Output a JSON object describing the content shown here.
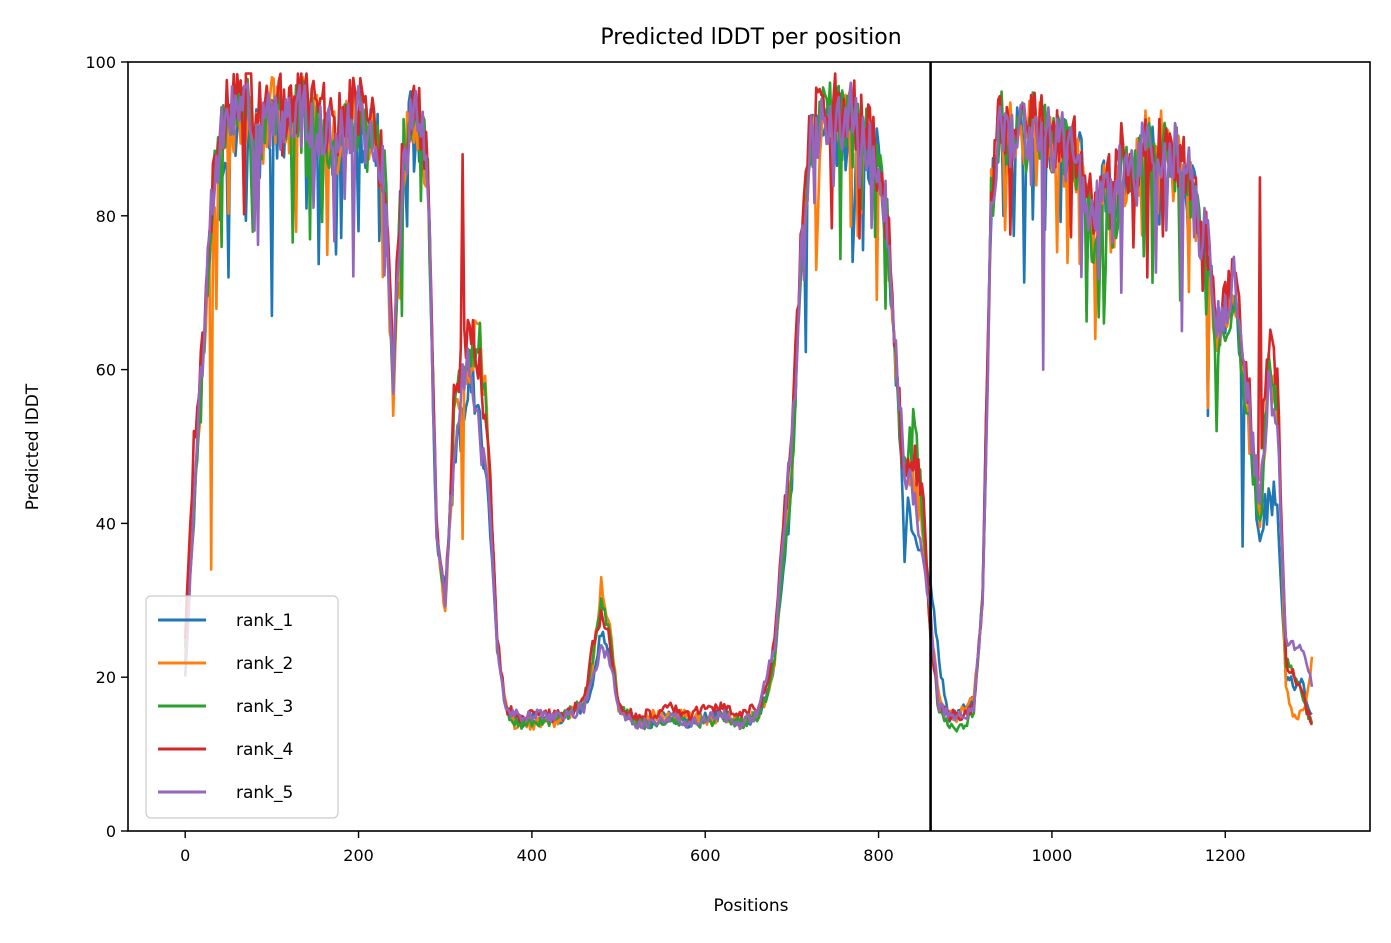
{
  "figure": {
    "title": "Predicted lDDT per position"
  },
  "chart_data": {
    "type": "line",
    "title": "Predicted lDDT per position",
    "xlabel": "Positions",
    "ylabel": "Predicted lDDT",
    "xlim": [
      -66,
      1367
    ],
    "ylim": [
      0,
      100
    ],
    "xticks": [
      0,
      200,
      400,
      600,
      800,
      1000,
      1200
    ],
    "yticks": [
      0,
      20,
      40,
      60,
      80,
      100
    ],
    "grid": false,
    "legend_position": "lower-left",
    "vertical_line": {
      "x": 860,
      "color": "#000000"
    },
    "x": [
      0,
      10,
      20,
      30,
      40,
      50,
      60,
      70,
      80,
      90,
      100,
      110,
      120,
      130,
      140,
      150,
      160,
      170,
      180,
      190,
      200,
      210,
      220,
      230,
      240,
      250,
      260,
      270,
      280,
      290,
      300,
      310,
      320,
      330,
      340,
      350,
      360,
      370,
      380,
      390,
      400,
      420,
      440,
      460,
      470,
      480,
      490,
      500,
      520,
      540,
      560,
      580,
      600,
      620,
      640,
      660,
      670,
      680,
      690,
      700,
      710,
      720,
      730,
      740,
      750,
      760,
      770,
      780,
      790,
      800,
      810,
      820,
      830,
      840,
      850,
      860,
      870,
      880,
      890,
      900,
      910,
      920,
      930,
      940,
      950,
      960,
      970,
      980,
      990,
      1000,
      1010,
      1020,
      1030,
      1040,
      1050,
      1060,
      1070,
      1080,
      1090,
      1100,
      1110,
      1120,
      1130,
      1140,
      1150,
      1160,
      1170,
      1180,
      1190,
      1200,
      1210,
      1220,
      1230,
      1240,
      1250,
      1260,
      1270,
      1280,
      1290,
      1300
    ],
    "series": [
      {
        "name": "rank_1",
        "color": "#1f77b4",
        "values": [
          22,
          44,
          62,
          80,
          89,
          90,
          92,
          93,
          91,
          90,
          92,
          91,
          90,
          92,
          93,
          91,
          90,
          88,
          89,
          91,
          92,
          89,
          90,
          84,
          60,
          85,
          92,
          91,
          85,
          38,
          31,
          48,
          52,
          60,
          52,
          42,
          24,
          16,
          15,
          14,
          15,
          14,
          15,
          16,
          19,
          26,
          23,
          16,
          14,
          14,
          15,
          14,
          15,
          15,
          14,
          15,
          17,
          22,
          34,
          45,
          72,
          88,
          90,
          92,
          93,
          91,
          92,
          90,
          88,
          87,
          78,
          60,
          42,
          39,
          36,
          32,
          22,
          15,
          15,
          16,
          17,
          30,
          82,
          92,
          89,
          91,
          89,
          92,
          90,
          88,
          90,
          88,
          88,
          82,
          79,
          84,
          80,
          86,
          84,
          86,
          90,
          87,
          89,
          88,
          86,
          84,
          78,
          76,
          64,
          66,
          69,
          60,
          50,
          37,
          44,
          42,
          20,
          19,
          19,
          15
        ],
        "dips": [
          [
            50,
            72
          ],
          [
            100,
            67
          ],
          [
            145,
            67
          ],
          [
            200,
            78
          ],
          [
            770,
            74
          ],
          [
            830,
            35
          ],
          [
            1180,
            54
          ],
          [
            1220,
            37
          ]
        ]
      },
      {
        "name": "rank_2",
        "color": "#ff7f0e",
        "values": [
          23,
          42,
          60,
          80,
          90,
          92,
          93,
          94,
          92,
          91,
          94,
          93,
          91,
          93,
          94,
          92,
          91,
          89,
          90,
          92,
          93,
          90,
          91,
          84,
          56,
          86,
          92,
          92,
          86,
          39,
          28,
          52,
          58,
          62,
          66,
          50,
          24,
          16,
          14,
          14,
          14,
          14,
          15,
          17,
          22,
          31,
          27,
          16,
          14,
          15,
          15,
          15,
          14,
          15,
          14,
          15,
          17,
          22,
          36,
          48,
          73,
          88,
          91,
          93,
          94,
          92,
          93,
          91,
          89,
          87,
          79,
          60,
          44,
          48,
          40,
          27,
          17,
          15,
          15,
          16,
          17,
          30,
          82,
          93,
          90,
          92,
          90,
          93,
          91,
          88,
          90,
          87,
          86,
          82,
          76,
          84,
          78,
          86,
          84,
          86,
          90,
          88,
          90,
          88,
          86,
          84,
          76,
          75,
          62,
          66,
          70,
          60,
          50,
          40,
          60,
          56,
          18,
          15,
          15,
          22
        ],
        "dips": [
          [
            30,
            34
          ],
          [
            240,
            54
          ],
          [
            320,
            38
          ],
          [
            345,
            37
          ],
          [
            480,
            33
          ],
          [
            1050,
            64
          ],
          [
            1180,
            55
          ]
        ]
      },
      {
        "name": "rank_3",
        "color": "#2ca02c",
        "values": [
          24,
          40,
          60,
          80,
          90,
          92,
          93,
          94,
          92,
          91,
          93,
          92,
          91,
          93,
          94,
          92,
          91,
          89,
          90,
          92,
          93,
          90,
          91,
          85,
          58,
          87,
          93,
          92,
          86,
          40,
          29,
          54,
          62,
          63,
          64,
          50,
          24,
          16,
          14,
          14,
          14,
          14,
          15,
          17,
          22,
          30,
          26,
          16,
          14,
          14,
          15,
          14,
          14,
          15,
          14,
          15,
          17,
          22,
          35,
          47,
          73,
          88,
          91,
          93,
          94,
          92,
          93,
          91,
          89,
          87,
          79,
          60,
          46,
          52,
          44,
          25,
          15,
          14,
          13,
          14,
          16,
          30,
          82,
          93,
          90,
          92,
          90,
          93,
          91,
          89,
          90,
          88,
          87,
          81,
          75,
          84,
          78,
          86,
          84,
          86,
          90,
          87,
          89,
          88,
          86,
          84,
          77,
          75,
          62,
          65,
          69,
          60,
          50,
          40,
          60,
          56,
          22,
          20,
          17,
          14
        ],
        "dips": [
          [
            250,
            67
          ],
          [
            370,
            16
          ],
          [
            1060,
            66
          ],
          [
            1110,
            75
          ],
          [
            1190,
            52
          ]
        ]
      },
      {
        "name": "rank_4",
        "color": "#d62728",
        "values": [
          25,
          50,
          62,
          82,
          92,
          94,
          95,
          96,
          94,
          93,
          95,
          94,
          93,
          95,
          96,
          94,
          93,
          91,
          92,
          94,
          95,
          92,
          93,
          86,
          60,
          88,
          94,
          94,
          88,
          40,
          30,
          56,
          62,
          66,
          60,
          50,
          25,
          16,
          15,
          15,
          15,
          15,
          15,
          17,
          24,
          28,
          25,
          16,
          15,
          15,
          16,
          15,
          16,
          16,
          15,
          16,
          18,
          25,
          40,
          50,
          76,
          90,
          93,
          94,
          95,
          93,
          94,
          92,
          90,
          88,
          80,
          62,
          46,
          48,
          46,
          25,
          16,
          15,
          15,
          15,
          16,
          30,
          84,
          94,
          91,
          93,
          91,
          94,
          92,
          90,
          91,
          89,
          89,
          82,
          80,
          86,
          82,
          88,
          86,
          88,
          91,
          88,
          90,
          89,
          87,
          85,
          79,
          77,
          66,
          70,
          72,
          64,
          54,
          46,
          64,
          60,
          22,
          20,
          18,
          13
        ],
        "dips": [
          [
            10,
            52
          ],
          [
            320,
            88
          ],
          [
            1110,
            72
          ],
          [
            1240,
            85
          ]
        ]
      },
      {
        "name": "rank_5",
        "color": "#9467bd",
        "values": [
          20,
          42,
          62,
          80,
          90,
          92,
          93,
          94,
          92,
          91,
          93,
          92,
          91,
          93,
          94,
          92,
          91,
          89,
          90,
          92,
          93,
          90,
          91,
          84,
          58,
          86,
          92,
          92,
          86,
          38,
          30,
          50,
          60,
          60,
          52,
          44,
          24,
          16,
          15,
          15,
          15,
          15,
          15,
          16,
          20,
          24,
          22,
          16,
          14,
          14,
          15,
          14,
          15,
          15,
          14,
          15,
          20,
          24,
          38,
          50,
          73,
          88,
          91,
          93,
          94,
          92,
          93,
          91,
          89,
          87,
          79,
          62,
          46,
          44,
          36,
          28,
          16,
          15,
          15,
          15,
          16,
          30,
          82,
          93,
          90,
          92,
          90,
          93,
          91,
          89,
          90,
          88,
          88,
          82,
          80,
          86,
          80,
          87,
          85,
          86,
          92,
          88,
          90,
          88,
          86,
          84,
          78,
          76,
          66,
          68,
          72,
          62,
          52,
          42,
          58,
          52,
          25,
          24,
          24,
          19
        ],
        "dips": [
          [
            990,
            60
          ],
          [
            1080,
            70
          ],
          [
            1150,
            65
          ]
        ]
      }
    ]
  }
}
